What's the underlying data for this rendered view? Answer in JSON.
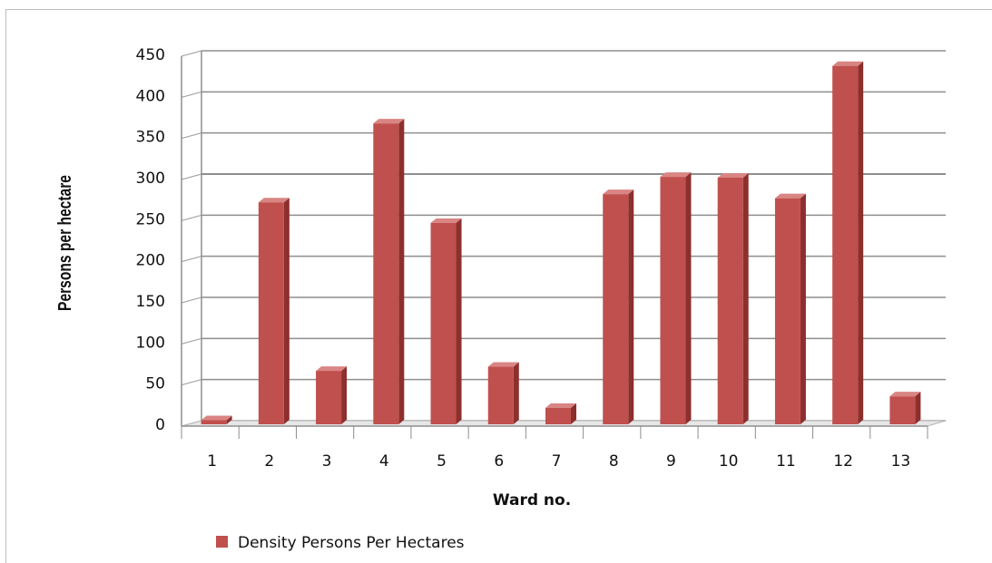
{
  "chart_data": {
    "type": "bar",
    "categories": [
      "1",
      "2",
      "3",
      "4",
      "5",
      "6",
      "7",
      "8",
      "9",
      "10",
      "11",
      "12",
      "13"
    ],
    "series": [
      {
        "name": "Density Persons Per Hectares",
        "values": [
          5,
          270,
          65,
          366,
          245,
          70,
          20,
          280,
          301,
          300,
          275,
          436,
          34
        ]
      }
    ],
    "xlabel": "Ward no.",
    "ylabel": "Persons per hectare",
    "ylim": [
      0,
      450
    ],
    "yticks": [
      0,
      50,
      100,
      150,
      200,
      250,
      300,
      350,
      400,
      450
    ],
    "grid": true,
    "legend_position": "bottom-left",
    "bar_color": "#c0504d",
    "bar_side_color": "#8c2f2d",
    "bar_top_color": "#d98583"
  }
}
